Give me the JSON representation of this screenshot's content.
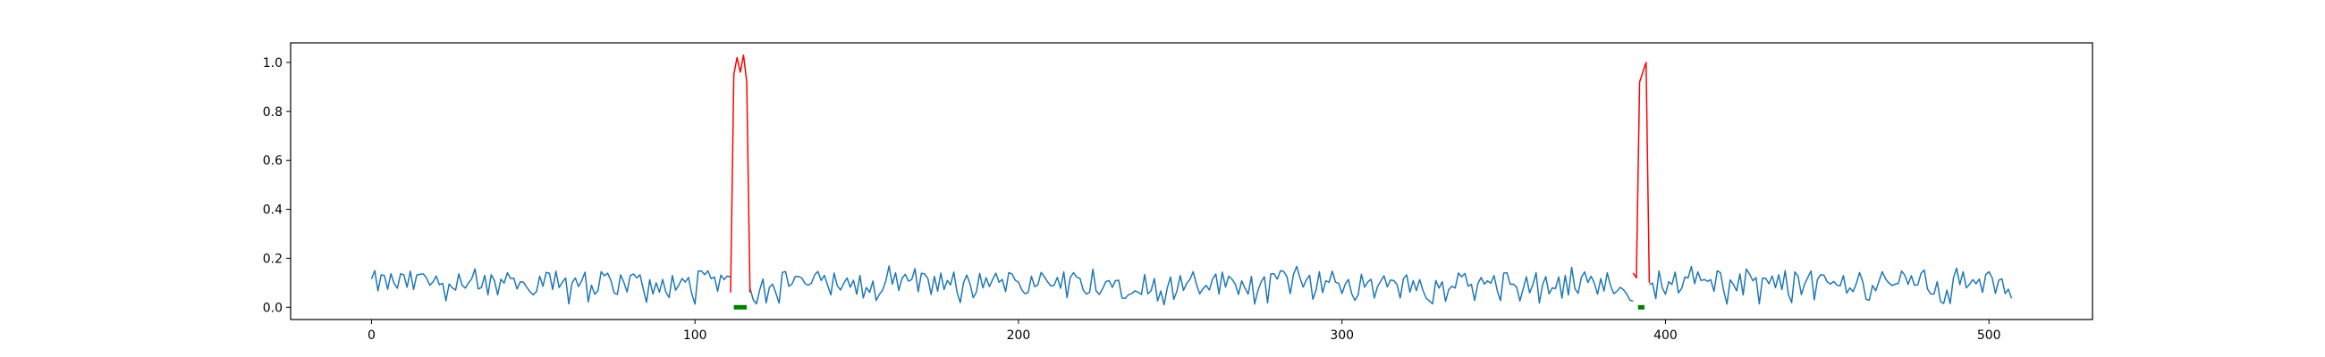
{
  "chart_data": {
    "type": "line",
    "title": "",
    "xlabel": "",
    "ylabel": "",
    "xlim": [
      -25,
      532
    ],
    "ylim": [
      -0.05,
      1.08
    ],
    "x_ticks": [
      0,
      100,
      200,
      300,
      400,
      500
    ],
    "x_tick_labels": [
      "0",
      "100",
      "200",
      "300",
      "400",
      "500"
    ],
    "y_ticks": [
      0.0,
      0.2,
      0.4,
      0.6,
      0.8,
      1.0
    ],
    "y_tick_labels": [
      "0.0",
      "0.2",
      "0.4",
      "0.6",
      "0.8",
      "1.0"
    ],
    "grid": false,
    "legend": "none",
    "series": [
      {
        "color": "#1f77b4",
        "line_width": 1.5,
        "note_on_values": "noisy baseline signal, values mostly between 0.0 and 0.18",
        "x_range": [
          0,
          507
        ],
        "segments": [
          [
            0,
            111
          ],
          [
            117,
            390
          ],
          [
            395,
            507
          ]
        ]
      },
      {
        "color": "#ff0000",
        "line_width": 1.5,
        "segments": [
          {
            "x": [
              111,
              112,
              113,
              114,
              115,
              116,
              117
            ],
            "y": [
              0.06,
              0.95,
              1.02,
              0.96,
              1.03,
              0.92,
              0.06
            ]
          },
          {
            "x": [
              390,
              391,
              392,
              393,
              394,
              395
            ],
            "y": [
              0.14,
              0.12,
              0.92,
              0.96,
              1.0,
              0.1
            ]
          }
        ]
      }
    ],
    "markers": [
      {
        "color": "#008000",
        "x_start": 112,
        "x_end": 116,
        "y": 0.0
      },
      {
        "color": "#008000",
        "x_start": 391.5,
        "x_end": 393.5,
        "y": 0.0
      }
    ]
  }
}
